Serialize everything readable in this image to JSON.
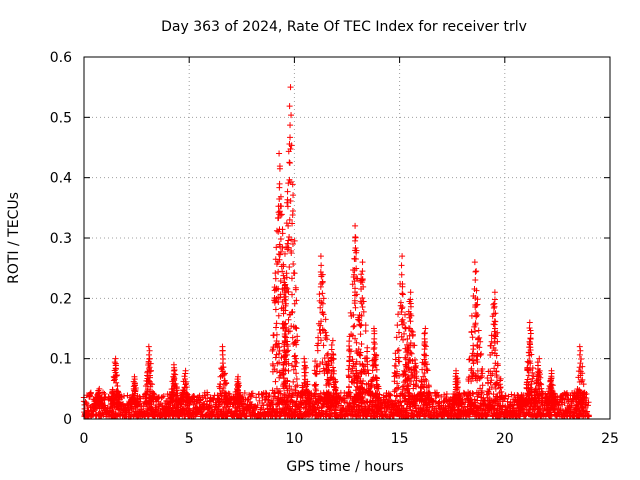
{
  "chart_data": {
    "type": "scatter",
    "title": "Day 363 of 2024, Rate Of TEC Index for receiver trlv",
    "xlabel": "GPS time / hours",
    "ylabel": "ROTI / TECUs",
    "xlim": [
      0,
      25
    ],
    "ylim": [
      0,
      0.6
    ],
    "xticks": [
      0,
      5,
      10,
      15,
      20,
      25
    ],
    "yticks": [
      0,
      0.1,
      0.2,
      0.3,
      0.4,
      0.5,
      0.6
    ],
    "grid": true,
    "marker": "+",
    "color": "#ff0000",
    "series": [
      {
        "name": "ROTI",
        "baseline_band": [
          0.0,
          0.04
        ],
        "peaks": [
          {
            "x": 0.7,
            "y": 0.05
          },
          {
            "x": 1.5,
            "y": 0.1
          },
          {
            "x": 2.4,
            "y": 0.07
          },
          {
            "x": 3.1,
            "y": 0.12
          },
          {
            "x": 4.3,
            "y": 0.09
          },
          {
            "x": 4.8,
            "y": 0.08
          },
          {
            "x": 6.6,
            "y": 0.12
          },
          {
            "x": 7.3,
            "y": 0.07
          },
          {
            "x": 9.3,
            "y": 0.44
          },
          {
            "x": 9.8,
            "y": 0.55
          },
          {
            "x": 10.5,
            "y": 0.1
          },
          {
            "x": 11.3,
            "y": 0.27
          },
          {
            "x": 11.8,
            "y": 0.13
          },
          {
            "x": 12.9,
            "y": 0.32
          },
          {
            "x": 13.2,
            "y": 0.26
          },
          {
            "x": 13.8,
            "y": 0.15
          },
          {
            "x": 15.1,
            "y": 0.27
          },
          {
            "x": 15.5,
            "y": 0.21
          },
          {
            "x": 16.2,
            "y": 0.15
          },
          {
            "x": 17.7,
            "y": 0.08
          },
          {
            "x": 18.6,
            "y": 0.26
          },
          {
            "x": 19.5,
            "y": 0.21
          },
          {
            "x": 20.8,
            "y": 0.04
          },
          {
            "x": 21.2,
            "y": 0.16
          },
          {
            "x": 21.6,
            "y": 0.1
          },
          {
            "x": 22.2,
            "y": 0.08
          },
          {
            "x": 23.6,
            "y": 0.12
          }
        ]
      }
    ]
  }
}
